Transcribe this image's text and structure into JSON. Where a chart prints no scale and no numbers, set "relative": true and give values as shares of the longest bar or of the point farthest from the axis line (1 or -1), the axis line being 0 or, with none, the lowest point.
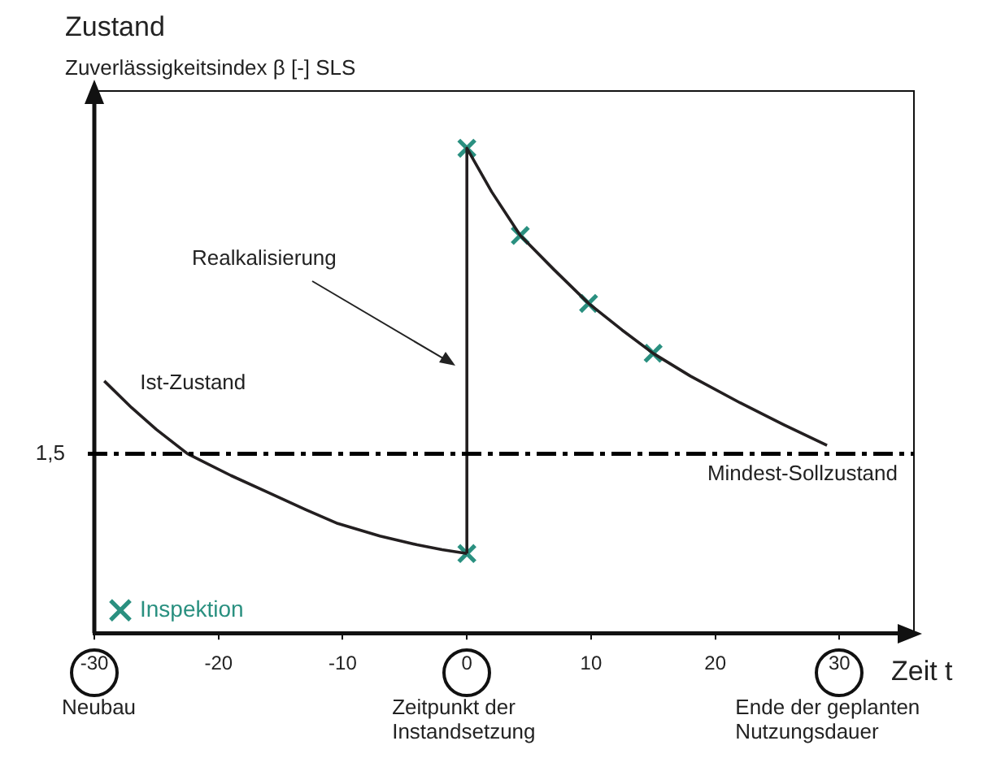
{
  "chart_data": {
    "type": "line",
    "title": "Zustand",
    "ylabel": "Zuverlässigkeitsindex β [-] SLS",
    "xlabel": "Zeit t",
    "relative": true,
    "xlim": [
      -30,
      36
    ],
    "xticks": [
      -30,
      -20,
      -10,
      0,
      10,
      20,
      30
    ],
    "grid": false,
    "legend": "bottom left",
    "series": [
      {
        "name": "Ist-Zustand",
        "color": "#231f20",
        "x": [
          -29.2,
          -27,
          -25,
          -22.5,
          -19,
          -16,
          -13,
          -10.4,
          -7,
          -4,
          -2,
          0
        ],
        "values": [
          0.52,
          0.465,
          0.42,
          0.37,
          0.325,
          0.29,
          0.255,
          0.226,
          0.2,
          0.182,
          0.172,
          0.164
        ]
      },
      {
        "color": "#231f20",
        "x": [
          0,
          0,
          2,
          4.3,
          7,
          9.8,
          12.5,
          15,
          18,
          22,
          25.5,
          29
        ],
        "values": [
          0.164,
          1,
          0.91,
          0.82,
          0.75,
          0.68,
          0.625,
          0.577,
          0.53,
          0.475,
          0.43,
          0.387
        ]
      },
      {
        "name": "Inspektion",
        "type": "scatter",
        "marker": "cross",
        "color": "#2a9080",
        "x": [
          0,
          0,
          4.3,
          9.8,
          15
        ],
        "values": [
          0.164,
          1,
          0.82,
          0.68,
          0.577
        ]
      }
    ],
    "ref_lines": [
      {
        "axis": "y",
        "value": 0.37,
        "label": "Mindest-Sollzustand",
        "line_style": "dashed",
        "color": "#000000"
      }
    ],
    "annotations": [
      "1,5",
      "Realkalisierung",
      "Neubau",
      "Zeitpunkt der\nInstandsetzung",
      "Ende der geplanten\nNutzungsdauer"
    ]
  }
}
